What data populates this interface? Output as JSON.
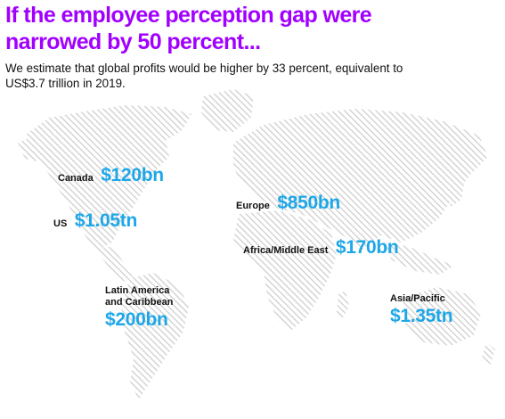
{
  "header": {
    "title_line1": "If the employee perception gap were",
    "title_line2": "narrowed by 50 percent...",
    "subtitle_line1": "We estimate that global profits would be higher by 33 percent, equivalent to",
    "subtitle_line2": "US$3.7 trillion in 2019."
  },
  "regions": {
    "canada": {
      "name": "Canada",
      "value": "$120bn"
    },
    "us": {
      "name": "US",
      "value": "$1.05tn"
    },
    "latin_america": {
      "name_line1": "Latin America",
      "name_line2": "and Caribbean",
      "value": "$200bn"
    },
    "europe": {
      "name": "Europe",
      "value": "$850bn"
    },
    "africa_middle_east": {
      "name": "Africa/Middle East",
      "value": "$170bn"
    },
    "asia_pacific": {
      "name": "Asia/Pacific",
      "value": "$1.35tn"
    }
  },
  "colors": {
    "title": "#a100ff",
    "value": "#1ea7e8",
    "map_hatch": "#cfcfcf"
  }
}
